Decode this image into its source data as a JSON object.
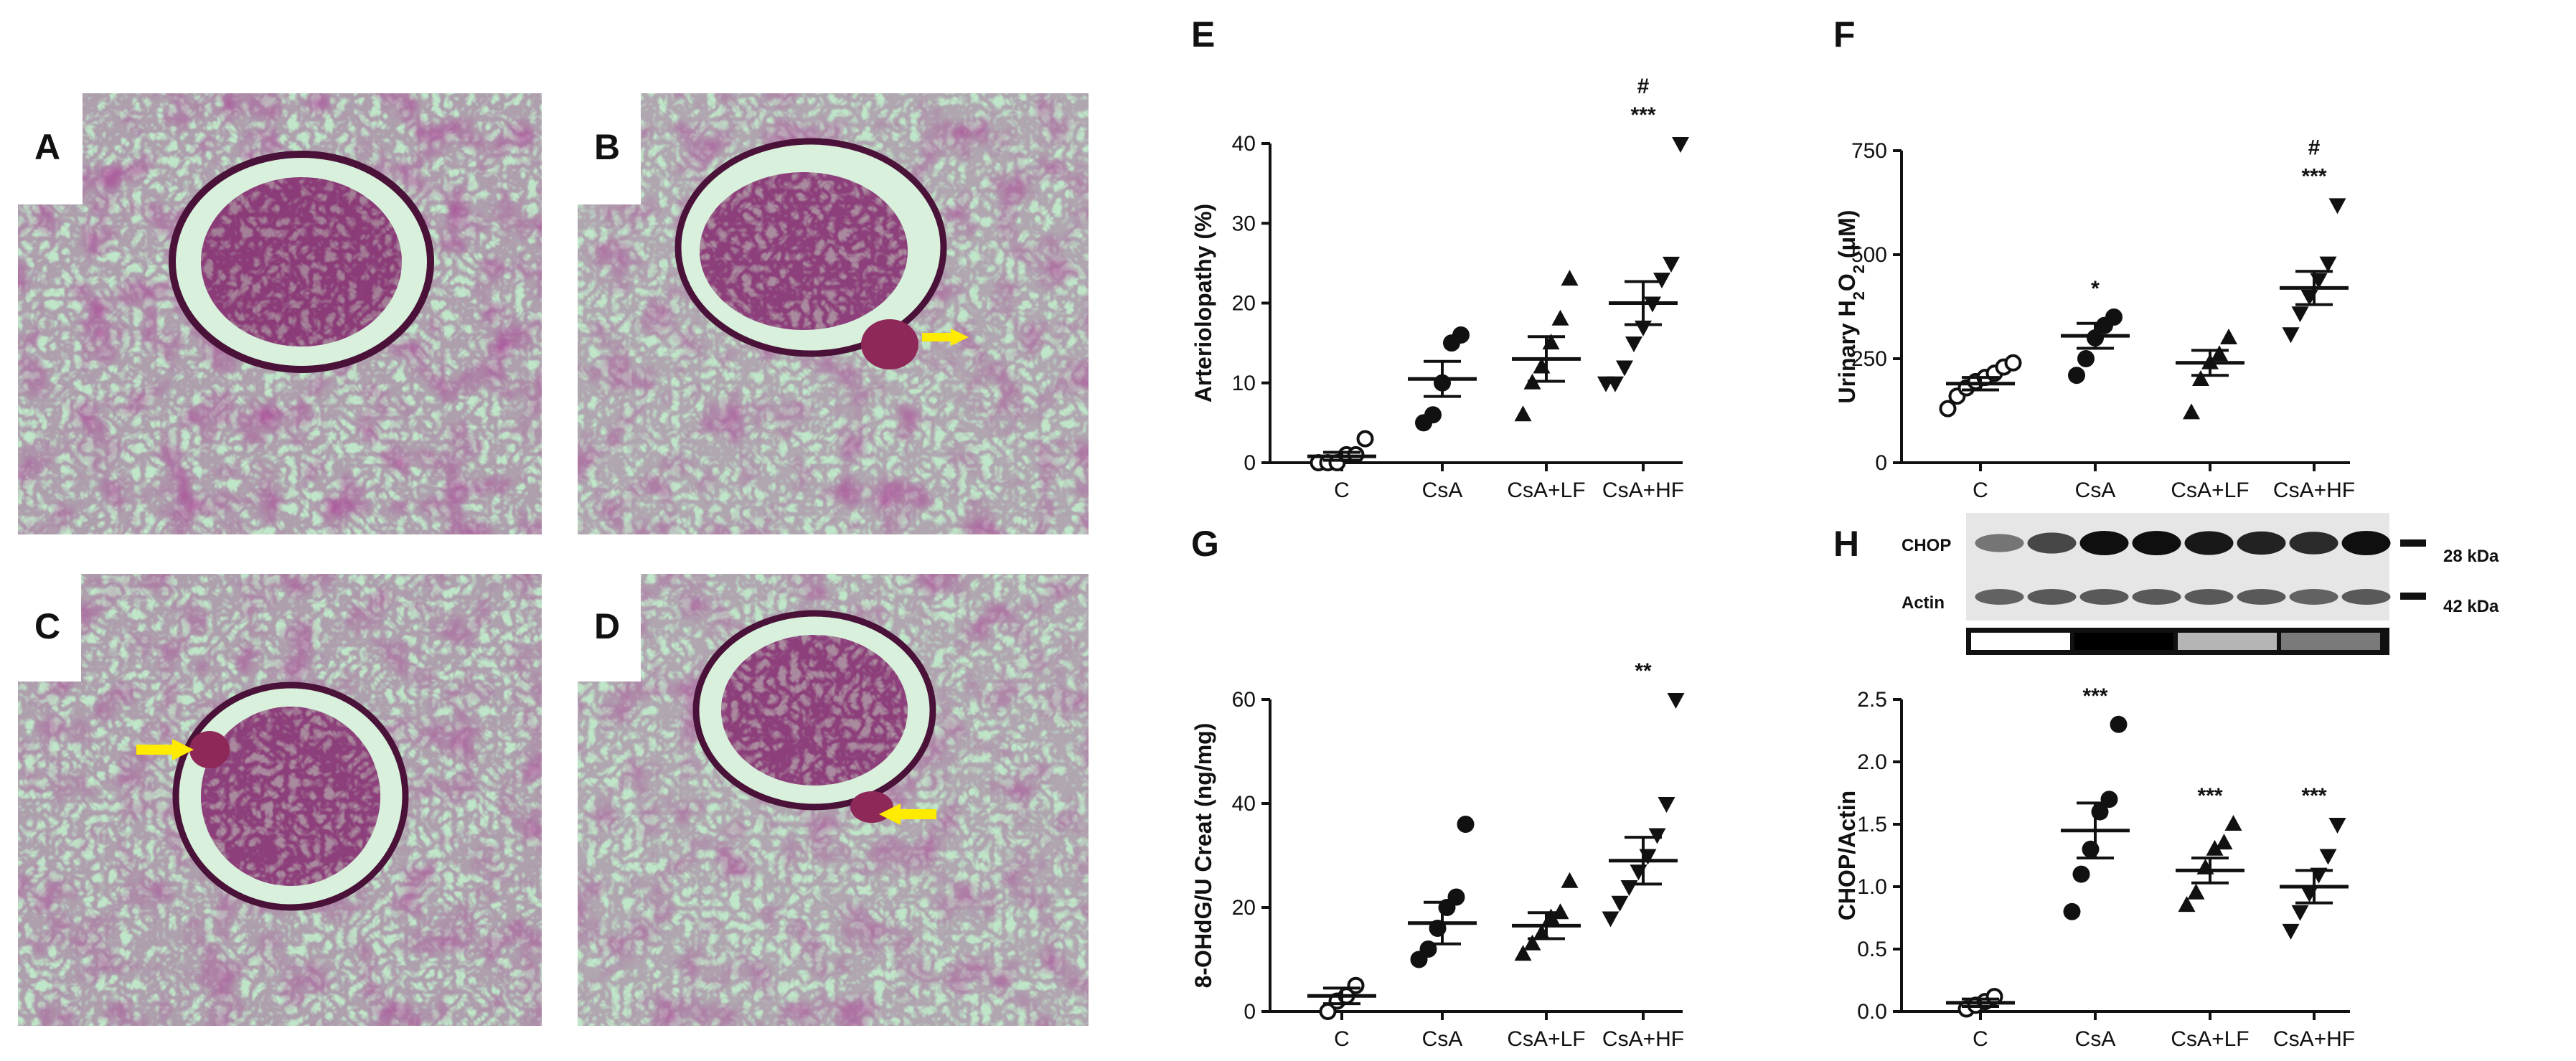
{
  "micrographs": [
    {
      "label": "A",
      "arrow": false
    },
    {
      "label": "B",
      "arrow": true
    },
    {
      "label": "C",
      "arrow": true
    },
    {
      "label": "D",
      "arrow": true
    }
  ],
  "colors": {
    "tissue_bg": "#bfe6c8",
    "stain": "#8a2f6b",
    "stain_dark": "#5a1848",
    "arrow": "#ffeb00",
    "axis": "#111111"
  },
  "chart_data": [
    {
      "panel": "E",
      "type": "scatter",
      "ylabel": "Arteriolopathy (%)",
      "ylim": [
        0,
        40
      ],
      "yticks": [
        "0",
        "10",
        "20",
        "30",
        "40"
      ],
      "categories": [
        "C",
        "CsA",
        "CsA+LF",
        "CsA+HF"
      ],
      "markers": [
        "open-circle",
        "circle",
        "triangle-up",
        "triangle-down"
      ],
      "points": [
        [
          0,
          0,
          0,
          1,
          1,
          3
        ],
        [
          5,
          6,
          10,
          15,
          16
        ],
        [
          6,
          10,
          12,
          15,
          18,
          23
        ],
        [
          10,
          10,
          12,
          15,
          17,
          20,
          23,
          25,
          40
        ]
      ],
      "mean": [
        0.8,
        10.5,
        13,
        20
      ],
      "sem": [
        0.5,
        2.2,
        2.8,
        2.7
      ],
      "annotations": [
        {
          "category": "CsA+HF",
          "lines": [
            "#",
            "***"
          ]
        }
      ]
    },
    {
      "panel": "F",
      "type": "scatter",
      "ylabel": "Urinary H2O2 (μM)",
      "ylim": [
        0,
        750
      ],
      "yticks": [
        "0",
        "250",
        "500",
        "750"
      ],
      "categories": [
        "C",
        "CsA",
        "CsA+LF",
        "CsA+HF"
      ],
      "markers": [
        "open-circle",
        "circle",
        "triangle-up",
        "triangle-down"
      ],
      "points": [
        [
          130,
          160,
          180,
          195,
          205,
          215,
          230,
          240
        ],
        [
          210,
          250,
          300,
          330,
          350
        ],
        [
          120,
          200,
          240,
          260,
          300
        ],
        [
          310,
          360,
          400,
          440,
          480,
          620
        ]
      ],
      "mean": [
        190,
        305,
        240,
        420
      ],
      "sem": [
        15,
        30,
        30,
        40
      ],
      "annotations": [
        {
          "category": "CsA",
          "lines": [
            "*"
          ]
        },
        {
          "category": "CsA+HF",
          "lines": [
            "#",
            "***"
          ]
        }
      ]
    },
    {
      "panel": "G",
      "type": "scatter",
      "ylabel": "8-OHdG/U Creat (ng/mg)",
      "ylim": [
        0,
        60
      ],
      "yticks": [
        "0",
        "20",
        "40",
        "60"
      ],
      "categories": [
        "C",
        "CsA",
        "CsA+LF",
        "CsA+HF"
      ],
      "markers": [
        "open-circle",
        "circle",
        "triangle-up",
        "triangle-down"
      ],
      "points": [
        [
          0,
          2,
          3,
          5
        ],
        [
          10,
          12,
          16,
          20,
          22,
          36
        ],
        [
          11,
          13,
          15,
          18,
          19,
          25
        ],
        [
          18,
          21,
          24,
          27,
          30,
          34,
          40,
          60
        ]
      ],
      "mean": [
        3,
        17,
        16.5,
        29
      ],
      "sem": [
        1.5,
        4,
        2.5,
        4.5
      ],
      "annotations": [
        {
          "category": "CsA+HF",
          "lines": [
            "**"
          ]
        }
      ]
    },
    {
      "panel": "H",
      "type": "scatter",
      "ylabel": "CHOP/Actin",
      "ylim": [
        0,
        2.5
      ],
      "yticks": [
        "0.0",
        "0.5",
        "1.0",
        "1.5",
        "2.0",
        "2.5"
      ],
      "categories": [
        "C",
        "CsA",
        "CsA+LF",
        "CsA+HF"
      ],
      "markers": [
        "open-circle",
        "circle",
        "triangle-up",
        "triangle-down"
      ],
      "points": [
        [
          0.02,
          0.05,
          0.08,
          0.12
        ],
        [
          0.8,
          1.1,
          1.3,
          1.6,
          1.7,
          2.3
        ],
        [
          0.85,
          0.95,
          1.15,
          1.3,
          1.35,
          1.5
        ],
        [
          0.65,
          0.8,
          0.95,
          1.1,
          1.25,
          1.5
        ]
      ],
      "mean": [
        0.07,
        1.45,
        1.13,
        1.0
      ],
      "sem": [
        0.03,
        0.22,
        0.1,
        0.13
      ],
      "annotations": [
        {
          "category": "CsA",
          "lines": [
            "***"
          ]
        },
        {
          "category": "CsA+LF",
          "lines": [
            "***"
          ]
        },
        {
          "category": "CsA+HF",
          "lines": [
            "***"
          ]
        }
      ]
    }
  ],
  "blot": {
    "rows": [
      {
        "label": "CHOP",
        "size": "28 kDa",
        "intensity": [
          0.45,
          0.7,
          1.0,
          1.0,
          0.95,
          0.9,
          0.85,
          1.0
        ]
      },
      {
        "label": "Actin",
        "size": "42 kDa",
        "intensity": [
          0.55,
          0.6,
          0.6,
          0.6,
          0.6,
          0.6,
          0.55,
          0.6
        ]
      }
    ],
    "group_colors": [
      "#ffffff",
      "#000000",
      "#b5b5b5",
      "#7a7a7a"
    ]
  }
}
